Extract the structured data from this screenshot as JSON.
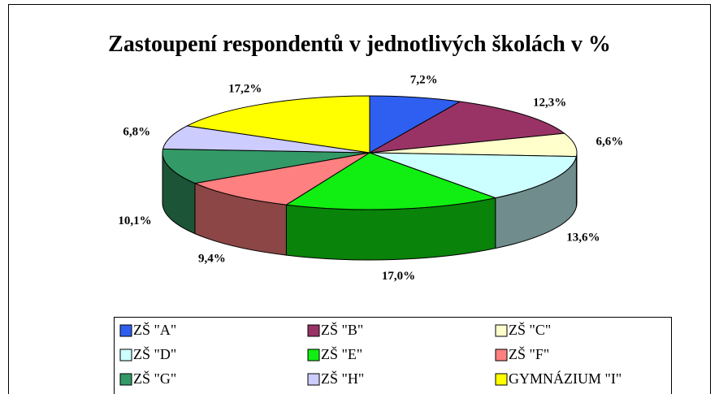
{
  "chart_data": {
    "type": "pie",
    "title": "Zastoupení respondentů v jednotlivých školách v %",
    "categories": [
      "ZŠ \"A\"",
      "ZŠ \"B\"",
      "ZŠ \"C\"",
      "ZŠ  \"D\"",
      "ZŠ \"E\"",
      "ZŠ \"F\"",
      "ZŠ \"G\"",
      "ZŠ  \"H\"",
      "GYMNÁZIUM \"I\""
    ],
    "values": [
      7.2,
      12.3,
      6.6,
      13.6,
      17.0,
      9.4,
      10.1,
      6.8,
      17.2
    ],
    "value_labels": [
      "7,2%",
      "12,3%",
      "6,6%",
      "13,6%",
      "17,0%",
      "9,4%",
      "10,1%",
      "6,8%",
      "17,2%"
    ],
    "colors": [
      "#2f5ff0",
      "#993366",
      "#ffffcc",
      "#ccffff",
      "#11ee11",
      "#ff8080",
      "#339966",
      "#ccccff",
      "#ffff00"
    ],
    "legend": "bottom"
  }
}
